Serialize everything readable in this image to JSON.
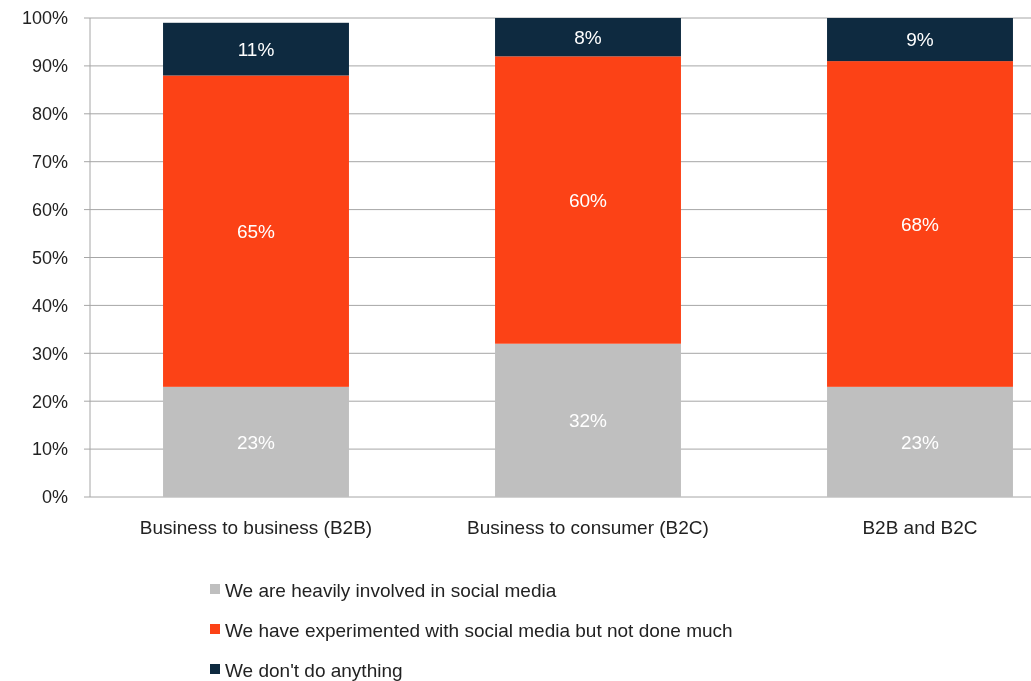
{
  "chart_data": {
    "type": "bar",
    "stacked": true,
    "categories": [
      "Business to business (B2B)",
      "Business to consumer (B2C)",
      "B2B and B2C"
    ],
    "series": [
      {
        "name": "We are heavily involved in social media",
        "color": "#bfbfbf",
        "values": [
          23,
          32,
          23
        ],
        "value_labels": [
          "23%",
          "32%",
          "23%"
        ]
      },
      {
        "name": "We have experimented with social media but not done much",
        "color": "#fc4216",
        "values": [
          65,
          60,
          68
        ],
        "value_labels": [
          "65%",
          "60%",
          "68%"
        ]
      },
      {
        "name": "We don't do anything",
        "color": "#0e2a40",
        "values": [
          11,
          8,
          9
        ],
        "value_labels": [
          "11%",
          "8%",
          "9%"
        ]
      }
    ],
    "ylim": [
      0,
      100
    ],
    "yticks": [
      {
        "value": 0,
        "label": "0%"
      },
      {
        "value": 10,
        "label": "10%"
      },
      {
        "value": 20,
        "label": "20%"
      },
      {
        "value": 30,
        "label": "30%"
      },
      {
        "value": 40,
        "label": "40%"
      },
      {
        "value": 50,
        "label": "50%"
      },
      {
        "value": 60,
        "label": "60%"
      },
      {
        "value": 70,
        "label": "70%"
      },
      {
        "value": 80,
        "label": "80%"
      },
      {
        "value": 90,
        "label": "90%"
      },
      {
        "value": 100,
        "label": "100%"
      }
    ],
    "grid": "y",
    "legend": "bottom"
  }
}
